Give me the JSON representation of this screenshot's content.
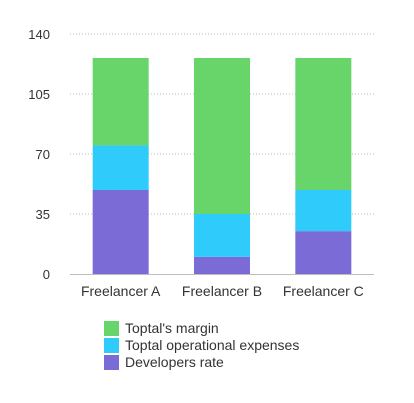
{
  "chart_data": {
    "type": "bar",
    "stacked": true,
    "categories": [
      "Freelancer A",
      "Freelancer B",
      "Freelancer C"
    ],
    "series": [
      {
        "name": "Developers rate",
        "color": "#7b6bd6",
        "values": [
          49,
          10,
          25
        ]
      },
      {
        "name": "Toptal operational expenses",
        "color": "#2ecbfb",
        "values": [
          26,
          25,
          24
        ]
      },
      {
        "name": "Toptal's margin",
        "color": "#68d56b",
        "values": [
          51,
          91,
          77
        ]
      }
    ],
    "title": "",
    "xlabel": "",
    "ylabel": "",
    "ylim": [
      0,
      140
    ],
    "yticks": [
      0,
      35,
      70,
      105,
      140
    ],
    "grid": "horizontal-dotted",
    "legend_position": "bottom"
  },
  "legend": {
    "items": [
      {
        "label": "Toptal's margin",
        "color": "#68d56b"
      },
      {
        "label": "Toptal operational expenses",
        "color": "#2ecbfb"
      },
      {
        "label": "Developers rate",
        "color": "#7b6bd6"
      }
    ]
  }
}
